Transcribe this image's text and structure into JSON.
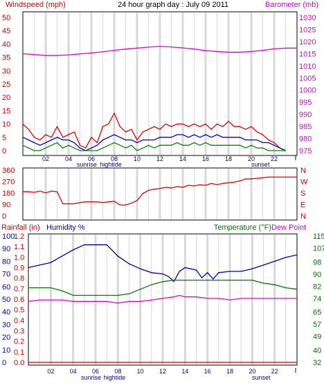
{
  "chart_data": [
    {
      "type": "line",
      "panel": "wind-pressure",
      "title": "24 hour graph day : July 09 2011",
      "y_left_label": "Windspeed (mph)",
      "y_right_label": "Barometer (mb)",
      "x_ticks": [
        "02",
        "04",
        "06",
        "08",
        "10",
        "12",
        "14",
        "16",
        "18",
        "20",
        "22"
      ],
      "x_range": [
        0,
        24
      ],
      "y_left_range": [
        0,
        50
      ],
      "y_left_ticks": [
        0,
        5,
        10,
        15,
        20,
        25,
        30,
        35,
        40,
        45,
        50
      ],
      "y_right_range": [
        975,
        1030
      ],
      "y_right_ticks": [
        975,
        980,
        985,
        990,
        995,
        1000,
        1005,
        1010,
        1015,
        1020,
        1025,
        1030
      ],
      "annotations": [
        "sunrise",
        "hightide",
        "sunset"
      ],
      "grid": "vertical",
      "series": [
        {
          "key": "gust",
          "color": "#dd0000",
          "axis": "left",
          "x": [
            0,
            0.5,
            1,
            1.5,
            2,
            2.5,
            3,
            3.5,
            4,
            4.5,
            5,
            5.5,
            6,
            6.5,
            7,
            7.5,
            8,
            8.5,
            9,
            9.5,
            10,
            10.5,
            11,
            11.5,
            12,
            12.5,
            13,
            13.5,
            14,
            14.5,
            15,
            15.5,
            16,
            16.5,
            17,
            17.5,
            18,
            18.5,
            19,
            19.5,
            20,
            20.5,
            21,
            21.5,
            22,
            22.5,
            23
          ],
          "values": [
            10,
            8,
            5,
            4,
            6,
            5,
            9,
            5,
            6,
            7,
            2,
            1,
            5,
            3,
            9,
            10,
            14,
            9,
            7,
            8,
            4,
            7,
            8,
            9,
            8,
            10,
            9,
            10,
            10,
            9,
            10,
            9,
            10,
            8,
            10,
            9,
            11,
            9,
            9,
            8,
            9,
            7,
            6,
            4,
            3,
            1,
            0
          ]
        },
        {
          "key": "average-wind",
          "color": "#0000cc",
          "axis": "left",
          "x": [
            0,
            0.5,
            1,
            1.5,
            2,
            2.5,
            3,
            3.5,
            4,
            4.5,
            5,
            5.5,
            6,
            6.5,
            7,
            7.5,
            8,
            8.5,
            9,
            9.5,
            10,
            10.5,
            11,
            11.5,
            12,
            12.5,
            13,
            13.5,
            14,
            14.5,
            15,
            15.5,
            16,
            16.5,
            17,
            17.5,
            18,
            18.5,
            19,
            19.5,
            20,
            20.5,
            21,
            21.5,
            22,
            22.5,
            23
          ],
          "values": [
            5,
            4,
            3,
            2,
            3,
            4,
            5,
            4,
            4,
            3,
            1,
            0,
            1,
            2,
            4,
            5,
            6,
            5,
            4,
            4,
            3,
            4,
            4,
            4,
            5,
            5,
            5,
            6,
            6,
            5,
            6,
            5,
            6,
            5,
            6,
            5,
            5,
            5,
            5,
            4,
            4,
            4,
            3,
            3,
            2,
            1,
            0
          ]
        },
        {
          "key": "wind-min",
          "color": "#008800",
          "axis": "left",
          "x": [
            0,
            0.5,
            1,
            1.5,
            2,
            2.5,
            3,
            3.5,
            4,
            4.5,
            5,
            5.5,
            6,
            6.5,
            7,
            7.5,
            8,
            8.5,
            9,
            9.5,
            10,
            10.5,
            11,
            11.5,
            12,
            12.5,
            13,
            13.5,
            14,
            14.5,
            15,
            15.5,
            16,
            16.5,
            17,
            17.5,
            18,
            18.5,
            19,
            19.5,
            20,
            20.5,
            21,
            21.5,
            22,
            22.5,
            23
          ],
          "values": [
            2,
            1,
            0,
            0,
            1,
            2,
            3,
            1,
            2,
            1,
            0,
            0,
            0,
            0,
            1,
            2,
            3,
            2,
            1,
            2,
            0,
            1,
            2,
            1,
            2,
            2,
            2,
            3,
            2,
            2,
            3,
            2,
            3,
            2,
            2,
            2,
            2,
            2,
            2,
            1,
            2,
            1,
            1,
            0,
            0,
            0,
            0
          ]
        },
        {
          "key": "barometer",
          "color": "#dd00dd",
          "axis": "right",
          "x": [
            0,
            1,
            2,
            3,
            4,
            5,
            6,
            7,
            8,
            9,
            10,
            11,
            12,
            13,
            14,
            15,
            16,
            17,
            18,
            19,
            20,
            21,
            22,
            23,
            24
          ],
          "values": [
            1015,
            1014.6,
            1014.3,
            1014.3,
            1014.5,
            1014.9,
            1015.3,
            1015.8,
            1016.4,
            1016.9,
            1017.3,
            1017.7,
            1018,
            1017.8,
            1017.4,
            1016.9,
            1016.3,
            1015.9,
            1015.6,
            1015.6,
            1015.9,
            1016.4,
            1017,
            1017.3,
            1017.3
          ]
        }
      ]
    },
    {
      "type": "line",
      "panel": "wind-direction",
      "x_ticks": [],
      "x_range": [
        0,
        24
      ],
      "y_left_range": [
        0,
        360
      ],
      "y_left_ticks": [
        0,
        90,
        180,
        270,
        360
      ],
      "y_right_ticks": [
        "N",
        "E",
        "S",
        "W",
        "N"
      ],
      "grid": "vertical",
      "series": [
        {
          "key": "wind-direction",
          "color": "#dd0000",
          "axis": "left",
          "x": [
            0,
            0.5,
            1,
            1.5,
            2,
            2.5,
            3,
            3.5,
            4,
            4.5,
            5,
            5.5,
            6,
            6.5,
            7,
            7.5,
            8,
            8.5,
            9,
            9.5,
            10,
            10.5,
            11,
            11.5,
            12,
            12.5,
            13,
            13.5,
            14,
            14.5,
            15,
            15.5,
            16,
            16.5,
            17,
            17.5,
            18,
            18.5,
            19,
            19.5,
            20,
            20.5,
            21,
            21.5,
            22,
            22.5,
            23,
            23.5,
            24
          ],
          "values": [
            190,
            190,
            185,
            195,
            180,
            195,
            190,
            95,
            95,
            95,
            105,
            110,
            110,
            110,
            105,
            110,
            115,
            85,
            85,
            100,
            120,
            175,
            200,
            210,
            215,
            225,
            220,
            230,
            225,
            240,
            235,
            245,
            240,
            255,
            245,
            255,
            260,
            265,
            275,
            290,
            290,
            295,
            300,
            305,
            305,
            305,
            305,
            305,
            305
          ]
        }
      ]
    },
    {
      "type": "line",
      "panel": "humidity-temperature",
      "y_left_label": "Humidity %",
      "rain_label": "Rainfall (in)",
      "y_right_label": "Temperature (°F)",
      "y_right_label2": "Dew Point",
      "x_ticks": [
        "02",
        "04",
        "06",
        "08",
        "10",
        "12",
        "14",
        "16",
        "18",
        "20",
        "22"
      ],
      "x_range": [
        0,
        24
      ],
      "humidity_ticks": [
        0,
        10,
        20,
        30,
        40,
        50,
        60,
        70,
        80,
        90,
        100
      ],
      "rain_ticks": [
        "0.0",
        "0.1",
        "0.2",
        "0.3",
        "0.4",
        "0.5",
        "0.6",
        "0.7",
        "0.8",
        "0.9",
        "1.0",
        "1.1",
        "1.2"
      ],
      "temperature_range": [
        32,
        115
      ],
      "temperature_ticks": [
        32,
        40,
        49,
        57,
        65,
        74,
        82,
        90,
        98,
        107,
        115
      ],
      "annotations": [
        "sunrise",
        "hightide",
        "sunset"
      ],
      "grid": "vertical",
      "series": [
        {
          "key": "humidity",
          "color": "#0000aa",
          "axis": "humidity",
          "x": [
            0,
            1,
            2,
            3,
            4,
            5,
            6,
            7,
            8,
            9,
            10,
            11,
            12,
            12.5,
            13,
            13.5,
            14,
            15,
            15.5,
            16,
            16.5,
            17,
            18,
            19,
            20,
            21,
            22,
            23,
            24
          ],
          "values": [
            75,
            77,
            79,
            84,
            89,
            93,
            93,
            93,
            84,
            78,
            74,
            71,
            70,
            68,
            64,
            72,
            75,
            73,
            67,
            71,
            66,
            71,
            72,
            72,
            74,
            77,
            80,
            83,
            85
          ]
        },
        {
          "key": "temperature",
          "color": "#007700",
          "axis": "temperature",
          "x": [
            0,
            1,
            2,
            3,
            4,
            5,
            6,
            7,
            8,
            9,
            10,
            11,
            12,
            13,
            14,
            15,
            16,
            17,
            18,
            19,
            20,
            21,
            22,
            23,
            24
          ],
          "values": [
            81,
            81,
            81,
            79,
            76,
            76,
            76,
            76,
            76,
            77,
            80,
            83,
            85,
            86,
            86,
            86,
            86,
            86,
            86,
            86,
            86,
            84,
            83,
            81,
            80
          ]
        },
        {
          "key": "dew-point",
          "color": "#dd00dd",
          "axis": "temperature",
          "x": [
            0,
            1,
            2,
            3,
            4,
            5,
            6,
            7,
            8,
            9,
            10,
            11,
            12,
            13,
            13.5,
            14,
            15,
            16,
            17,
            18,
            19,
            20,
            21,
            22,
            23,
            24
          ],
          "values": [
            72,
            73,
            73,
            73,
            72,
            72,
            72,
            72,
            71,
            72,
            72,
            73,
            74,
            75,
            76,
            75,
            75,
            74,
            74,
            73,
            74,
            74,
            74,
            74,
            74,
            74
          ]
        },
        {
          "key": "rainfall",
          "color": "#cc0000",
          "axis": "rain",
          "x": [
            0,
            24
          ],
          "values": [
            0,
            0
          ]
        }
      ]
    }
  ]
}
